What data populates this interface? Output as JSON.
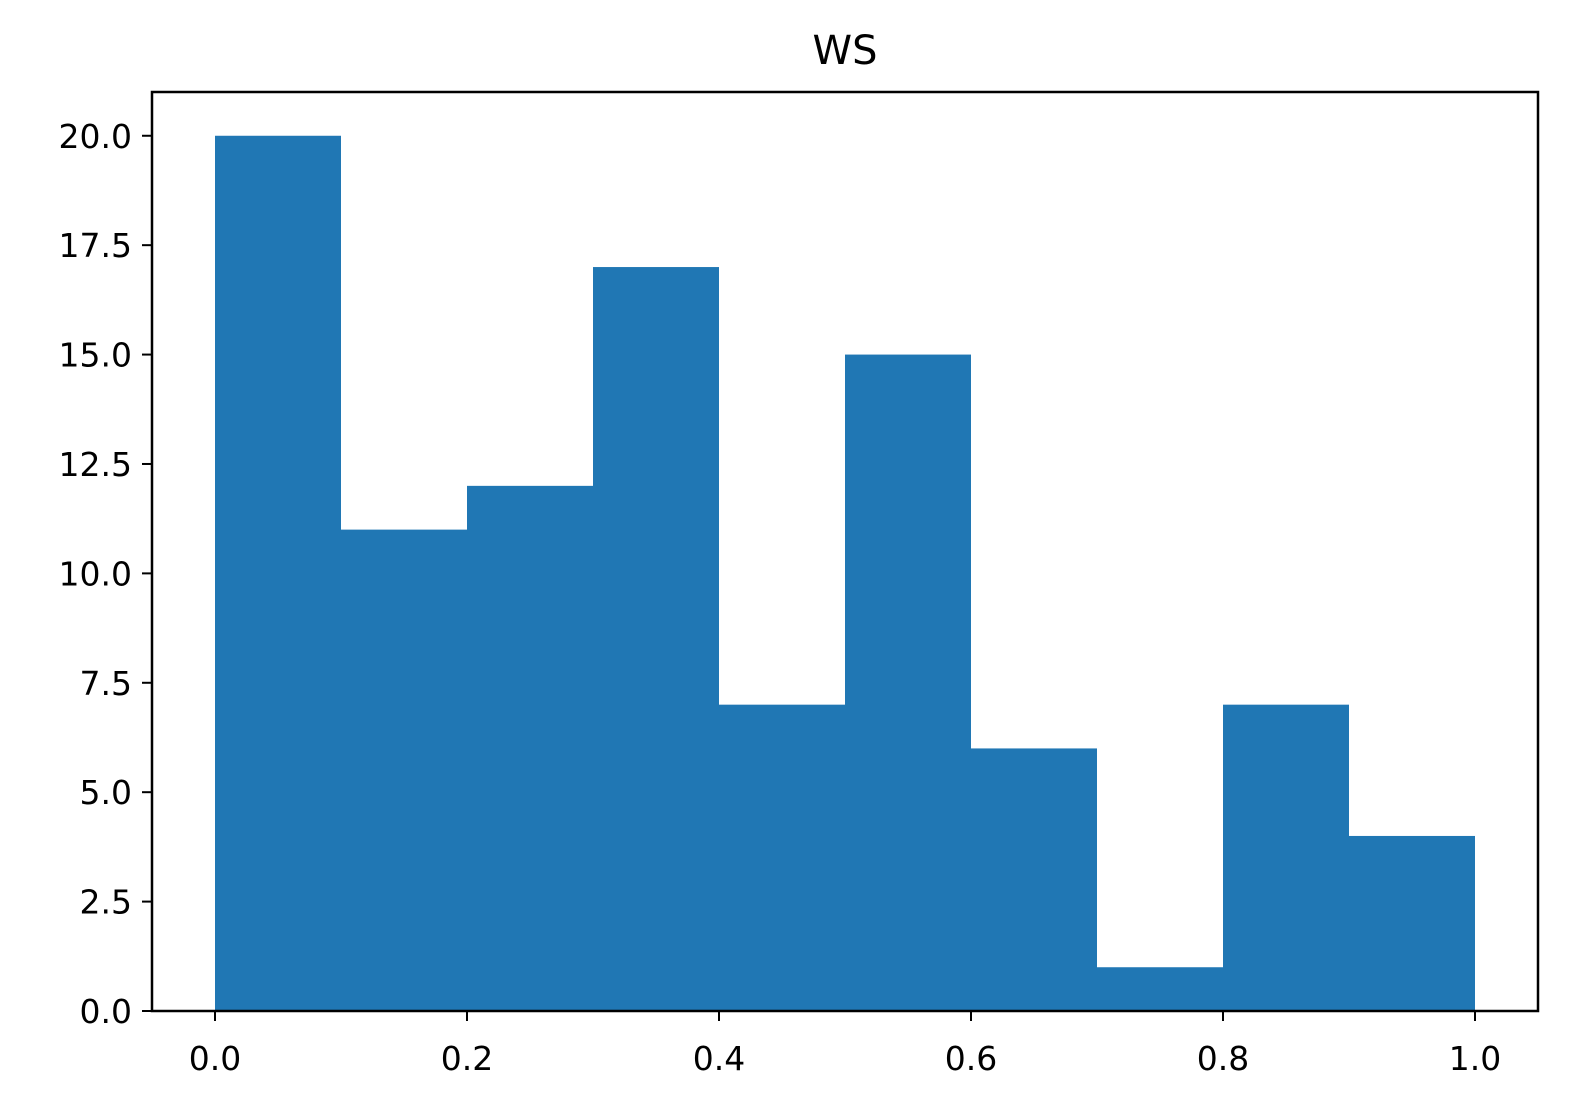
{
  "chart_data": {
    "type": "bar",
    "title": "WS",
    "xlabel": "",
    "ylabel": "",
    "bins": [
      {
        "x0": 0.0,
        "x1": 0.1,
        "count": 20
      },
      {
        "x0": 0.1,
        "x1": 0.2,
        "count": 11
      },
      {
        "x0": 0.2,
        "x1": 0.3,
        "count": 12
      },
      {
        "x0": 0.3,
        "x1": 0.4,
        "count": 17
      },
      {
        "x0": 0.4,
        "x1": 0.5,
        "count": 7
      },
      {
        "x0": 0.5,
        "x1": 0.6,
        "count": 15
      },
      {
        "x0": 0.6,
        "x1": 0.7,
        "count": 6
      },
      {
        "x0": 0.7,
        "x1": 0.8,
        "count": 1
      },
      {
        "x0": 0.8,
        "x1": 0.9,
        "count": 7
      },
      {
        "x0": 0.9,
        "x1": 1.0,
        "count": 4
      }
    ],
    "xlim": [
      -0.05,
      1.05
    ],
    "ylim": [
      0,
      21
    ],
    "xticks": [
      0.0,
      0.2,
      0.4,
      0.6,
      0.8,
      1.0
    ],
    "xtick_labels": [
      "0.0",
      "0.2",
      "0.4",
      "0.6",
      "0.8",
      "1.0"
    ],
    "yticks": [
      0.0,
      2.5,
      5.0,
      7.5,
      10.0,
      12.5,
      15.0,
      17.5,
      20.0
    ],
    "ytick_labels": [
      "0.0",
      "2.5",
      "5.0",
      "7.5",
      "10.0",
      "12.5",
      "15.0",
      "17.5",
      "20.0"
    ],
    "bar_color": "#2077b4",
    "grid": false,
    "legend": "none"
  }
}
